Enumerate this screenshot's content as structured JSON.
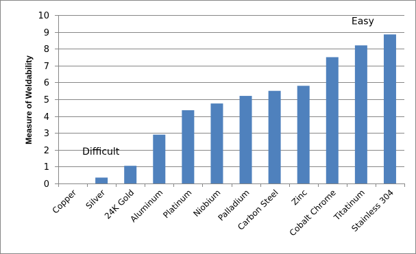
{
  "chart_data": {
    "type": "bar",
    "title": "",
    "xlabel": "",
    "ylabel": "Measure of Weldability",
    "ylim": [
      0,
      10
    ],
    "yticks": [
      0,
      1,
      2,
      3,
      4,
      5,
      6,
      7,
      8,
      9,
      10
    ],
    "grid": true,
    "legend": "none",
    "categories": [
      "Copper",
      "Silver",
      "24K Gold",
      "Aluminum",
      "Platinum",
      "Niobium",
      "Palladium",
      "Carbon Steel",
      "Zinc",
      "Cobalt Chrome",
      "Titatinum",
      "Stainless 304"
    ],
    "values": [
      0,
      0.35,
      1.05,
      2.9,
      4.35,
      4.75,
      5.2,
      5.5,
      5.8,
      7.5,
      8.2,
      8.85
    ],
    "bar_color": "#4F81BD",
    "annotations": [
      {
        "text": "Difficult",
        "x_category": "Silver",
        "y": 1.7
      },
      {
        "text": "Easy",
        "x_category": "Titatinum",
        "y": 9.45
      }
    ]
  }
}
